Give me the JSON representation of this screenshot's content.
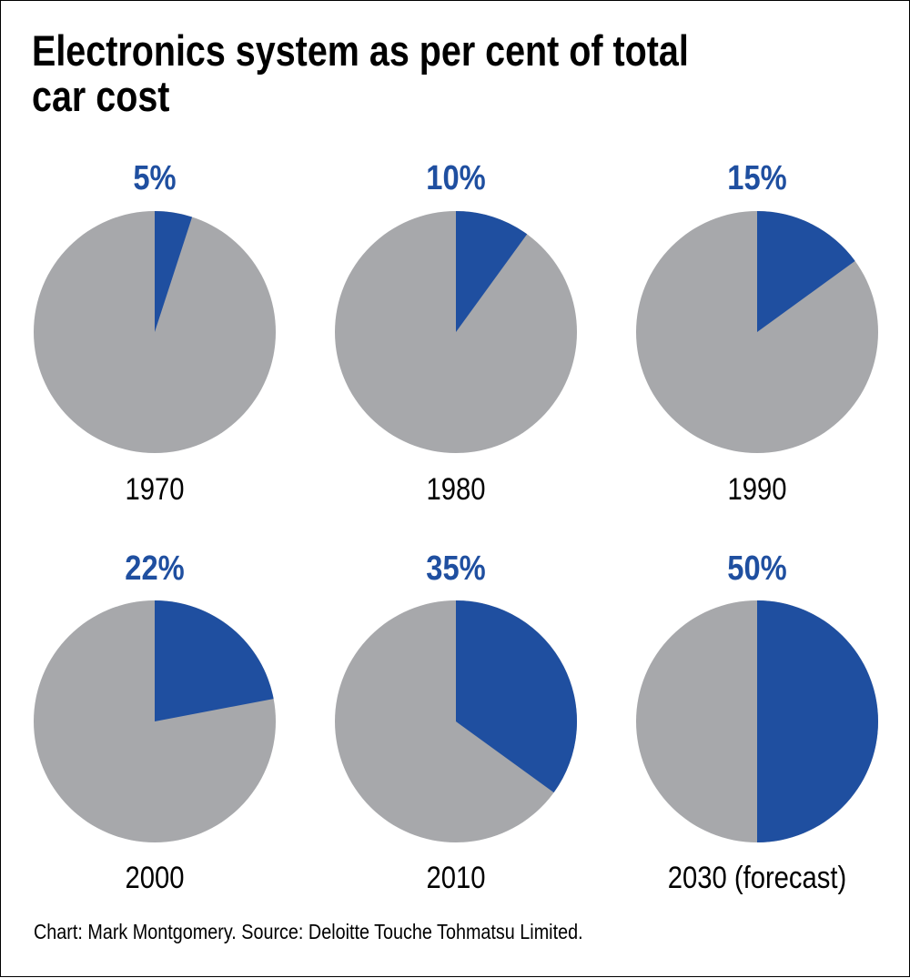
{
  "colors": {
    "electronics": "#1f4fa0",
    "rest": "#a7a8ab",
    "text": "#000000"
  },
  "chart_data": {
    "type": "pie",
    "title": "Electronics system as per cent of total car cost",
    "unit": "%",
    "panels": [
      {
        "year_label": "1970",
        "value": 5,
        "value_label": "5%"
      },
      {
        "year_label": "1980",
        "value": 10,
        "value_label": "10%"
      },
      {
        "year_label": "1990",
        "value": 15,
        "value_label": "15%"
      },
      {
        "year_label": "2000",
        "value": 22,
        "value_label": "22%"
      },
      {
        "year_label": "2010",
        "value": 35,
        "value_label": "35%"
      },
      {
        "year_label": "2030 (forecast)",
        "value": 50,
        "value_label": "50%"
      }
    ]
  },
  "source": "Chart: Mark Montgomery. Source: Deloitte Touche Tohmatsu Limited."
}
